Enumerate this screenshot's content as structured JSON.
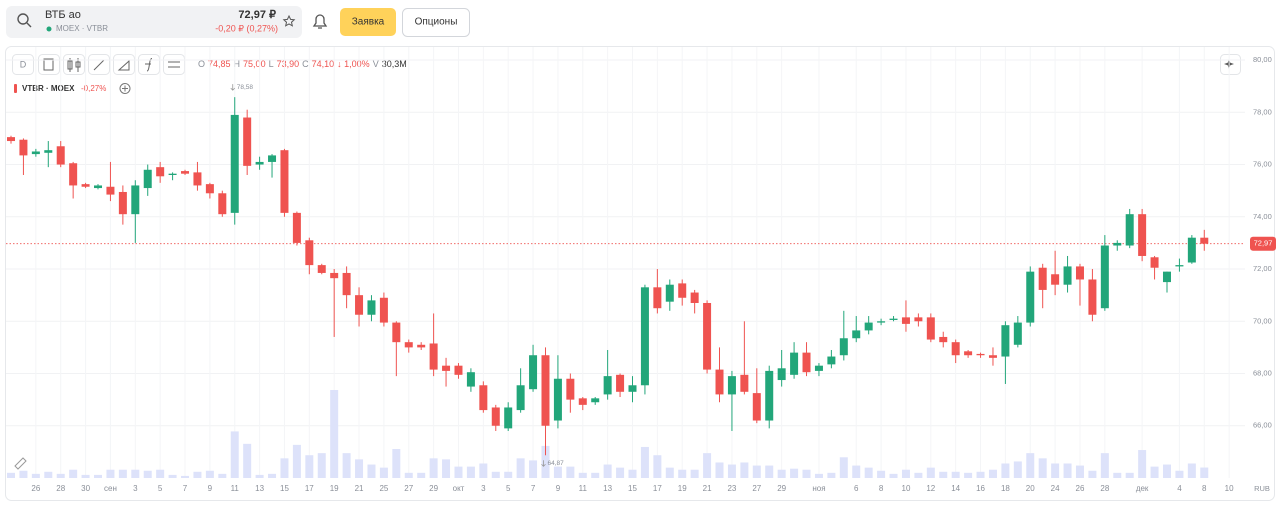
{
  "header": {
    "name": "ВТБ ао",
    "exchange": "MOEX · VTBR",
    "price": "72,97 ₽",
    "change": "-0,20 ₽ (0,27%)",
    "buttons": [
      "Заявка",
      "Опционы"
    ]
  },
  "toolbar": {
    "interval": "D"
  },
  "ohlc_legend": {
    "items": [
      {
        "key": "O",
        "value": "74,85"
      },
      {
        "key": "H",
        "value": "75,00"
      },
      {
        "key": "L",
        "value": "73,90"
      },
      {
        "key": "C",
        "value": "74,10"
      }
    ],
    "change": "↓ 1,00%",
    "volume_key": "V",
    "volume": "30,3M"
  },
  "instrument_legend": {
    "name": "VTBR · MOEX",
    "change": "-0,27%"
  },
  "chart_data": {
    "type": "candlestick",
    "currency": "RUB",
    "categories": [
      null,
      null,
      "26",
      null,
      "28",
      null,
      "30",
      null,
      "сен",
      null,
      "3",
      null,
      "5",
      null,
      "7",
      null,
      "9",
      null,
      "11",
      null,
      "13",
      null,
      "15",
      null,
      "17",
      null,
      "19",
      null,
      "21",
      null,
      "25",
      null,
      "27",
      null,
      "29",
      null,
      "окт",
      null,
      "3",
      null,
      "5",
      null,
      "7",
      null,
      "9",
      null,
      "11",
      null,
      "13",
      null,
      "15",
      null,
      "17",
      null,
      "19",
      null,
      "21",
      null,
      "23",
      null,
      "27",
      null,
      "29",
      null,
      null,
      "ноя",
      null,
      null,
      "6",
      null,
      "8",
      null,
      "10",
      null,
      "12",
      null,
      "14",
      null,
      "16",
      null,
      "18",
      null,
      "20",
      null,
      "24",
      null,
      "26",
      null,
      "28",
      null,
      null,
      "дек",
      null,
      null,
      "4",
      null,
      "8",
      null,
      "10"
    ],
    "open": [
      77.05,
      76.95,
      76.4,
      76.45,
      76.7,
      76.05,
      75.25,
      75.1,
      75.15,
      74.95,
      74.1,
      75.1,
      75.9,
      75.6,
      75.75,
      75.7,
      75.25,
      74.9,
      74.15,
      77.8,
      76.0,
      76.1,
      76.55,
      74.15,
      73.1,
      72.15,
      71.85,
      71.85,
      71.0,
      70.25,
      70.9,
      69.95,
      69.2,
      69.1,
      69.15,
      68.3,
      68.3,
      67.5,
      67.55,
      66.7,
      65.9,
      66.6,
      67.4,
      68.7,
      66.2,
      67.8,
      67.05,
      66.9,
      67.2,
      67.95,
      67.3,
      67.55,
      71.3,
      70.75,
      71.45,
      71.1,
      70.7,
      68.15,
      67.2,
      67.95,
      67.25,
      66.2,
      67.75,
      67.95,
      68.8,
      68.1,
      68.35,
      68.7,
      69.35,
      69.65,
      69.95,
      70.05,
      70.15,
      70.15,
      70.15,
      69.4,
      69.2,
      68.85,
      68.75,
      68.7,
      68.65,
      69.1,
      69.95,
      72.05,
      71.8,
      71.4,
      72.1,
      71.6,
      70.5,
      72.9,
      72.9,
      74.1,
      72.45,
      71.5,
      72.1,
      72.25,
      73.2,
      null,
      null
    ],
    "high": [
      77.1,
      77.0,
      76.6,
      76.9,
      76.9,
      76.1,
      75.3,
      75.25,
      76.1,
      75.2,
      75.4,
      76.0,
      76.1,
      75.7,
      75.8,
      76.1,
      75.3,
      75.0,
      78.58,
      78.1,
      76.3,
      76.4,
      76.6,
      74.2,
      73.2,
      72.2,
      72.0,
      72.1,
      71.3,
      71.0,
      71.1,
      70.0,
      69.3,
      69.2,
      70.3,
      68.6,
      68.4,
      68.2,
      67.7,
      66.8,
      66.9,
      68.2,
      69.1,
      69.0,
      68.7,
      68.0,
      67.1,
      67.1,
      68.9,
      68.0,
      67.9,
      71.4,
      72.0,
      71.6,
      71.6,
      71.2,
      70.8,
      69.0,
      68.1,
      70.0,
      68.2,
      68.3,
      68.9,
      69.2,
      69.2,
      68.4,
      68.9,
      70.4,
      70.2,
      70.2,
      70.1,
      70.2,
      70.8,
      70.3,
      70.3,
      69.6,
      69.3,
      68.9,
      68.8,
      69.0,
      70.0,
      70.2,
      72.1,
      72.2,
      72.7,
      72.5,
      72.2,
      72.0,
      73.3,
      73.1,
      74.3,
      74.3,
      72.5,
      71.9,
      72.4,
      73.3,
      73.5,
      null,
      null
    ],
    "low": [
      76.8,
      75.6,
      76.3,
      75.9,
      75.9,
      74.7,
      75.1,
      75.05,
      74.6,
      73.7,
      73.0,
      74.8,
      75.3,
      75.4,
      75.6,
      75.0,
      74.7,
      74.0,
      73.7,
      75.6,
      75.8,
      75.5,
      74.0,
      72.9,
      71.8,
      71.8,
      69.4,
      70.5,
      69.8,
      70.0,
      69.8,
      67.9,
      68.8,
      68.9,
      67.9,
      67.5,
      67.8,
      67.3,
      66.5,
      65.8,
      65.8,
      66.5,
      67.3,
      64.87,
      65.9,
      66.5,
      66.6,
      66.8,
      67.0,
      67.1,
      66.9,
      67.2,
      70.3,
      70.4,
      70.6,
      70.3,
      68.0,
      66.9,
      65.8,
      67.2,
      66.1,
      65.9,
      67.5,
      67.8,
      67.9,
      67.9,
      68.2,
      68.5,
      69.2,
      69.5,
      69.85,
      70.0,
      69.6,
      69.8,
      69.2,
      69.0,
      68.4,
      68.6,
      68.6,
      68.3,
      67.6,
      69.0,
      69.8,
      70.5,
      71.0,
      71.1,
      70.6,
      70.0,
      70.4,
      72.7,
      72.8,
      72.3,
      71.6,
      71.1,
      71.9,
      72.2,
      72.7,
      null,
      null
    ],
    "close": [
      76.9,
      76.35,
      76.5,
      76.55,
      76.0,
      75.2,
      75.15,
      75.2,
      74.85,
      74.1,
      75.2,
      75.8,
      75.55,
      75.65,
      75.65,
      75.2,
      74.9,
      74.1,
      77.9,
      75.95,
      76.1,
      76.35,
      74.15,
      73.0,
      72.15,
      71.85,
      71.65,
      71.0,
      70.25,
      70.8,
      69.95,
      69.2,
      69.0,
      69.0,
      68.15,
      68.1,
      67.95,
      68.05,
      66.6,
      66.0,
      66.7,
      67.55,
      68.7,
      66.0,
      67.8,
      67.0,
      66.8,
      67.05,
      67.9,
      67.3,
      67.55,
      71.3,
      70.5,
      71.4,
      70.9,
      70.7,
      68.15,
      67.2,
      67.9,
      67.3,
      66.2,
      68.1,
      68.2,
      68.8,
      68.05,
      68.3,
      68.65,
      69.35,
      69.65,
      69.95,
      70.0,
      70.1,
      69.9,
      70.0,
      69.3,
      69.2,
      68.7,
      68.7,
      68.7,
      68.6,
      69.85,
      69.95,
      71.9,
      71.2,
      71.4,
      72.1,
      71.6,
      70.25,
      72.9,
      73.0,
      74.1,
      72.5,
      72.05,
      71.9,
      72.15,
      73.2,
      72.97,
      null,
      null
    ],
    "volume": [
      15,
      21,
      12,
      18,
      12,
      24,
      9,
      9,
      24,
      24,
      24,
      21,
      24,
      9,
      6,
      18,
      21,
      12,
      135,
      99,
      9,
      12,
      57,
      96,
      66,
      72,
      255,
      72,
      54,
      39,
      30,
      84,
      15,
      15,
      57,
      54,
      33,
      33,
      42,
      18,
      18,
      57,
      51,
      93,
      33,
      33,
      15,
      15,
      39,
      30,
      24,
      90,
      66,
      30,
      24,
      24,
      72,
      45,
      39,
      45,
      36,
      36,
      24,
      27,
      24,
      12,
      15,
      60,
      36,
      30,
      21,
      12,
      24,
      15,
      30,
      18,
      18,
      15,
      18,
      24,
      42,
      48,
      72,
      57,
      42,
      42,
      36,
      21,
      72,
      15,
      15,
      81,
      33,
      39,
      21,
      42,
      30.3,
      null,
      null
    ],
    "up_color": "#22a67a",
    "down_color": "#ef5350",
    "volume_color": "#dde2fa",
    "ylim": [
      64,
      80.5
    ],
    "yticks": [
      {
        "value": 66,
        "label": "66,00"
      },
      {
        "value": 68,
        "label": "68,00"
      },
      {
        "value": 70,
        "label": "70,00"
      },
      {
        "value": 72,
        "label": "72,00"
      },
      {
        "value": 74,
        "label": "74,00"
      },
      {
        "value": 76,
        "label": "76,00"
      },
      {
        "value": 78,
        "label": "78,00"
      },
      {
        "value": 80,
        "label": "80,00"
      }
    ],
    "grid": true,
    "price_line": {
      "value": 72.97,
      "label": "72,97"
    },
    "max_label": {
      "value": 78.58,
      "label": "78,58"
    },
    "min_label": {
      "value": 64.87,
      "label": "64,87"
    }
  }
}
